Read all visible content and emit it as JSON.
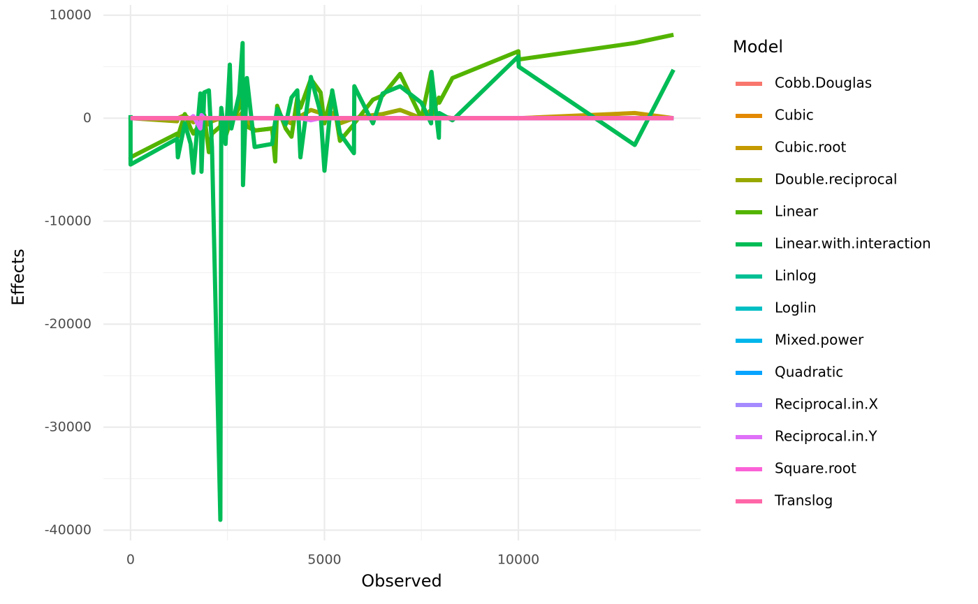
{
  "chart_data": {
    "type": "line",
    "x_label": "Observed",
    "y_label": "Effects",
    "legend_title": "Model",
    "xlim": [
      -700,
      14700
    ],
    "ylim": [
      -41000,
      11000
    ],
    "xticks": [
      0,
      5000,
      10000
    ],
    "yticks": [
      -40000,
      -30000,
      -20000,
      -10000,
      0,
      10000
    ],
    "xminorticks": [
      2500,
      7500,
      12500
    ],
    "yminorticks": [
      -35000,
      -25000,
      -15000,
      -5000,
      5000
    ],
    "grid": true,
    "legend": "right",
    "x": [
      0,
      1,
      1200,
      1220,
      1400,
      1550,
      1620,
      1800,
      1830,
      1900,
      2020,
      2100,
      2316,
      2340,
      2450,
      2560,
      2600,
      2800,
      2890,
      2900,
      3000,
      3200,
      3650,
      3730,
      3780,
      4000,
      4150,
      4300,
      4380,
      4650,
      4900,
      5000,
      5200,
      5400,
      5760,
      5770,
      6250,
      6500,
      6950,
      7500,
      7750,
      7760,
      7950,
      7960,
      8300,
      10000,
      10010,
      13000,
      14000
    ],
    "series": [
      {
        "name": "Cobb.Douglas",
        "color": "#F8766D",
        "values": [
          0,
          0,
          0,
          0,
          0,
          0,
          0,
          0,
          0,
          0,
          0,
          0,
          0,
          0,
          0,
          0,
          0,
          0,
          0,
          0,
          0,
          0,
          0,
          0,
          0,
          0,
          0,
          0,
          0,
          0,
          0,
          0,
          0,
          0,
          0,
          0,
          0,
          0,
          0,
          0,
          0,
          0,
          0,
          0,
          0,
          0,
          0,
          0,
          0
        ]
      },
      {
        "name": "Cubic",
        "color": "#E38900",
        "values": [
          0,
          0,
          0,
          0,
          0,
          0,
          0,
          0,
          0,
          0,
          0,
          0,
          0,
          0,
          0,
          0,
          0,
          0,
          0,
          0,
          0,
          0,
          0,
          0,
          0,
          0,
          0,
          0,
          0,
          0,
          0,
          0,
          0,
          0,
          0,
          0,
          0,
          0,
          0,
          0,
          0,
          0,
          0,
          0,
          0,
          0,
          0,
          0,
          0
        ]
      },
      {
        "name": "Cubic.root",
        "color": "#C49A00",
        "values": [
          0,
          0,
          0,
          0,
          0,
          0,
          0,
          0,
          0,
          0,
          0,
          0,
          0,
          0,
          0,
          0,
          0,
          0,
          0,
          0,
          0,
          0,
          0,
          0,
          0,
          0,
          0,
          0,
          0,
          0,
          0,
          0,
          0,
          0,
          0,
          0,
          0,
          0,
          0,
          0,
          0,
          0,
          0,
          0,
          0,
          0,
          0,
          500,
          0
        ]
      },
      {
        "name": "Double.reciprocal",
        "color": "#99A800",
        "values": [
          -200,
          0,
          -300,
          0,
          300,
          -200,
          -400,
          0,
          -500,
          200,
          -600,
          -300,
          0,
          300,
          -400,
          0,
          0,
          200,
          600,
          0,
          -200,
          -1200,
          -1000,
          -800,
          600,
          -300,
          -500,
          400,
          200,
          800,
          500,
          0,
          500,
          -500,
          0,
          0,
          300,
          400,
          800,
          0,
          800,
          0,
          300,
          200,
          0,
          0,
          0,
          0,
          0
        ]
      },
      {
        "name": "Linear",
        "color": "#53B400",
        "values": [
          -4000,
          -3800,
          -1500,
          -1800,
          400,
          -1000,
          -1500,
          -500,
          -2000,
          300,
          -3300,
          -1500,
          -800,
          800,
          -1800,
          -500,
          -400,
          1000,
          3000,
          -200,
          -800,
          -1200,
          -1000,
          -4200,
          1200,
          -1000,
          -1800,
          2000,
          1000,
          3800,
          2500,
          -500,
          2500,
          -2200,
          -600,
          -500,
          1800,
          2200,
          4300,
          0,
          4400,
          300,
          2000,
          1500,
          3900,
          6500,
          5700,
          7300,
          8100
        ]
      },
      {
        "name": "Linear.with.interaction",
        "color": "#00BC56",
        "values": [
          300,
          -4500,
          -2000,
          -3800,
          -500,
          -2500,
          -5300,
          2400,
          -5200,
          2500,
          2700,
          -2800,
          -39000,
          1000,
          -2500,
          5200,
          -1000,
          2300,
          7300,
          -6500,
          3900,
          -2800,
          -2500,
          -300,
          900,
          -600,
          2000,
          2700,
          -3800,
          4000,
          500,
          -5100,
          2700,
          -1500,
          -3400,
          3100,
          -500,
          2400,
          3100,
          1500,
          -500,
          4500,
          -1900,
          500,
          -200,
          6000,
          5000,
          -2600,
          4700
        ]
      },
      {
        "name": "Linlog",
        "color": "#00C094",
        "values": [
          0,
          0,
          0,
          0,
          0,
          0,
          0,
          0,
          0,
          0,
          0,
          0,
          0,
          0,
          0,
          0,
          0,
          0,
          0,
          0,
          0,
          0,
          0,
          0,
          0,
          0,
          0,
          0,
          0,
          0,
          0,
          0,
          0,
          0,
          0,
          0,
          0,
          0,
          0,
          0,
          0,
          0,
          0,
          0,
          0,
          0,
          0,
          0,
          0
        ]
      },
      {
        "name": "Loglin",
        "color": "#00BFC4",
        "values": [
          0,
          0,
          0,
          0,
          0,
          0,
          0,
          0,
          0,
          0,
          0,
          0,
          0,
          0,
          0,
          0,
          0,
          0,
          0,
          0,
          0,
          0,
          0,
          0,
          0,
          0,
          0,
          0,
          0,
          0,
          0,
          0,
          0,
          0,
          0,
          0,
          0,
          0,
          0,
          0,
          0,
          0,
          0,
          0,
          0,
          0,
          0,
          0,
          0
        ]
      },
      {
        "name": "Mixed.power",
        "color": "#00B6EB",
        "values": [
          0,
          0,
          0,
          0,
          0,
          0,
          0,
          0,
          0,
          0,
          0,
          0,
          0,
          0,
          0,
          0,
          0,
          0,
          0,
          0,
          0,
          0,
          0,
          0,
          0,
          0,
          0,
          0,
          0,
          0,
          0,
          0,
          0,
          0,
          0,
          0,
          0,
          0,
          0,
          0,
          0,
          0,
          0,
          0,
          0,
          0,
          0,
          0,
          0
        ]
      },
      {
        "name": "Quadratic",
        "color": "#06A4FF",
        "values": [
          0,
          0,
          0,
          0,
          0,
          0,
          0,
          0,
          0,
          0,
          0,
          0,
          0,
          0,
          0,
          0,
          0,
          0,
          0,
          0,
          0,
          0,
          0,
          0,
          0,
          0,
          0,
          0,
          0,
          0,
          0,
          0,
          0,
          0,
          0,
          0,
          0,
          0,
          0,
          0,
          0,
          0,
          0,
          0,
          0,
          0,
          0,
          0,
          0
        ]
      },
      {
        "name": "Reciprocal.in.X",
        "color": "#A58AFF",
        "values": [
          0,
          0,
          0,
          0,
          0,
          0,
          0,
          0,
          0,
          0,
          0,
          0,
          0,
          0,
          0,
          0,
          0,
          0,
          0,
          0,
          0,
          0,
          0,
          0,
          0,
          0,
          0,
          0,
          0,
          0,
          0,
          0,
          0,
          0,
          0,
          0,
          0,
          0,
          0,
          0,
          0,
          0,
          0,
          0,
          0,
          0,
          0,
          0,
          0
        ]
      },
      {
        "name": "Reciprocal.in.Y",
        "color": "#DF70F8",
        "values": [
          0,
          0,
          0,
          0,
          0,
          0,
          200,
          -1000,
          300,
          0,
          0,
          0,
          0,
          0,
          0,
          0,
          0,
          0,
          0,
          0,
          0,
          0,
          0,
          0,
          0,
          0,
          0,
          0,
          0,
          -200,
          0,
          0,
          0,
          0,
          0,
          0,
          0,
          0,
          0,
          0,
          0,
          0,
          0,
          0,
          0,
          0,
          0,
          0,
          0
        ]
      },
      {
        "name": "Square.root",
        "color": "#FB61D7",
        "values": [
          0,
          0,
          0,
          0,
          0,
          0,
          0,
          0,
          0,
          0,
          0,
          0,
          0,
          0,
          0,
          0,
          0,
          0,
          0,
          0,
          0,
          0,
          0,
          0,
          0,
          0,
          0,
          0,
          0,
          0,
          0,
          0,
          0,
          0,
          0,
          0,
          0,
          0,
          0,
          0,
          0,
          0,
          0,
          0,
          0,
          0,
          0,
          0,
          0
        ]
      },
      {
        "name": "Translog",
        "color": "#FF66A8",
        "values": [
          0,
          0,
          0,
          0,
          0,
          0,
          0,
          0,
          0,
          0,
          0,
          0,
          0,
          0,
          0,
          0,
          0,
          0,
          0,
          0,
          0,
          0,
          0,
          0,
          0,
          0,
          0,
          0,
          0,
          0,
          0,
          0,
          0,
          0,
          0,
          0,
          0,
          0,
          0,
          0,
          0,
          0,
          0,
          0,
          0,
          0,
          0,
          0,
          0
        ]
      }
    ]
  }
}
